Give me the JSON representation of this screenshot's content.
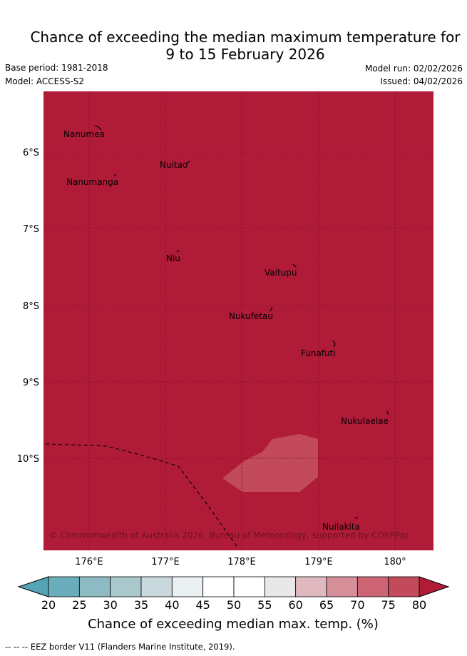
{
  "header": {
    "title_line1": "Chance of exceeding the median maximum temperature for",
    "title_line2": "9 to 15 February 2026",
    "base_period": "Base period: 1981-2018",
    "model": "Model: ACCESS-S2",
    "model_run": "Model run: 02/02/2026",
    "issued": "Issued: 04/02/2026"
  },
  "map": {
    "background_color": "#b01c38",
    "lat_labels": [
      "6°S",
      "7°S",
      "8°S",
      "9°S",
      "10°S"
    ],
    "lon_labels": [
      "176°E",
      "177°E",
      "178°E",
      "179°E",
      "180°"
    ],
    "places": [
      "Nanumea",
      "Nuitao",
      "Nanumanga",
      "Niu",
      "Vaitupu",
      "Nukufetau",
      "Funafuti",
      "Nukulaelae",
      "Nuilakita"
    ],
    "copyright": "© Commonwealth of Australia 2026, Bureau of Meteorology, supported by COSPPac"
  },
  "colorbar": {
    "ticks": [
      "20",
      "25",
      "30",
      "35",
      "40",
      "45",
      "50",
      "55",
      "60",
      "65",
      "70",
      "75",
      "80"
    ],
    "colors": [
      "#6aaebb",
      "#8ebac4",
      "#a9c8cc",
      "#c8d8dc",
      "#eaf0f2",
      "#ffffff",
      "#ffffff",
      "#e8e8e8",
      "#e0b8c0",
      "#d68e99",
      "#cc6474",
      "#c24a5a"
    ],
    "under_color": "#55a3b4",
    "over_color": "#b01c38",
    "label": "Chance of exceeding median max. temp. (%)"
  },
  "footer": {
    "legend_text": "--  --  -- EEZ border V11 (Flanders Marine Institute, 2019)."
  }
}
